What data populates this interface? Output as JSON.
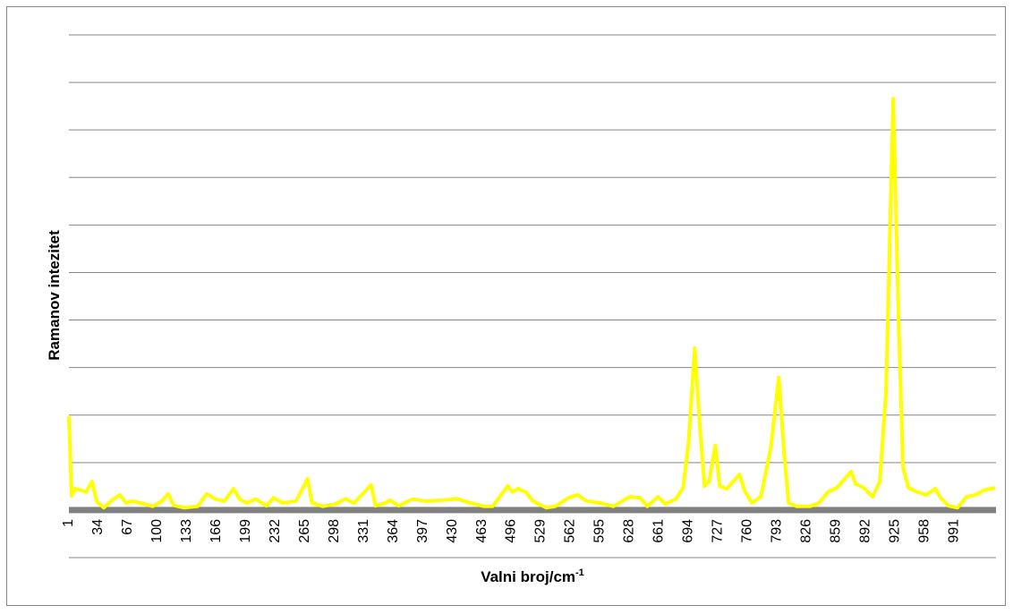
{
  "chart_data": {
    "type": "line",
    "xlabel": {
      "text": "Valni broj/cm",
      "superscript": "-1"
    },
    "ylabel": "Ramanov intezitet",
    "x": [
      1,
      4,
      8,
      14,
      20,
      27,
      32,
      40,
      50,
      58,
      65,
      72,
      85,
      95,
      105,
      112,
      118,
      130,
      145,
      155,
      165,
      175,
      185,
      192,
      200,
      210,
      222,
      230,
      240,
      255,
      268,
      273,
      285,
      300,
      310,
      320,
      339,
      344,
      355,
      360,
      370,
      385,
      400,
      420,
      435,
      450,
      465,
      475,
      492,
      497,
      503,
      512,
      520,
      535,
      545,
      560,
      570,
      580,
      595,
      610,
      628,
      640,
      648,
      660,
      668,
      680,
      688,
      694,
      701,
      707,
      712,
      717,
      724,
      729,
      737,
      751,
      757,
      765,
      775,
      786,
      795,
      801,
      806,
      815,
      830,
      840,
      850,
      860,
      876,
      881,
      890,
      900,
      908,
      915,
      923,
      929,
      934,
      940,
      950,
      960,
      970,
      976,
      985,
      995,
      1005,
      1015,
      1025,
      1037
    ],
    "series": [
      {
        "color": "#ffff00",
        "values": [
          1.98,
          0.3,
          0.45,
          0.42,
          0.38,
          0.6,
          0.18,
          0.05,
          0.22,
          0.32,
          0.15,
          0.19,
          0.13,
          0.08,
          0.19,
          0.34,
          0.1,
          0.05,
          0.08,
          0.34,
          0.23,
          0.19,
          0.45,
          0.23,
          0.15,
          0.23,
          0.09,
          0.26,
          0.15,
          0.19,
          0.66,
          0.15,
          0.08,
          0.13,
          0.24,
          0.15,
          0.53,
          0.09,
          0.15,
          0.21,
          0.09,
          0.23,
          0.19,
          0.21,
          0.24,
          0.15,
          0.08,
          0.08,
          0.51,
          0.38,
          0.45,
          0.38,
          0.19,
          0.05,
          0.08,
          0.26,
          0.32,
          0.19,
          0.15,
          0.08,
          0.28,
          0.26,
          0.08,
          0.28,
          0.13,
          0.23,
          0.47,
          1.4,
          3.41,
          1.7,
          0.5,
          0.6,
          1.36,
          0.5,
          0.45,
          0.75,
          0.4,
          0.15,
          0.28,
          1.3,
          2.79,
          1.2,
          0.15,
          0.08,
          0.08,
          0.15,
          0.38,
          0.47,
          0.81,
          0.55,
          0.47,
          0.28,
          0.6,
          2.5,
          8.66,
          4.0,
          0.9,
          0.47,
          0.38,
          0.32,
          0.45,
          0.26,
          0.09,
          0.05,
          0.28,
          0.32,
          0.42,
          0.47
        ]
      }
    ],
    "xlim": [
      1,
      1038
    ],
    "xticks": [
      1,
      34,
      67,
      100,
      133,
      166,
      199,
      232,
      265,
      298,
      331,
      364,
      397,
      430,
      463,
      496,
      529,
      562,
      595,
      628,
      661,
      694,
      727,
      760,
      793,
      826,
      859,
      892,
      925,
      958,
      991
    ],
    "ylim": [
      -1,
      10
    ],
    "yticks": [
      -1,
      0,
      1,
      2,
      3,
      4,
      5,
      6,
      7,
      8,
      9,
      10
    ],
    "grid": true
  }
}
